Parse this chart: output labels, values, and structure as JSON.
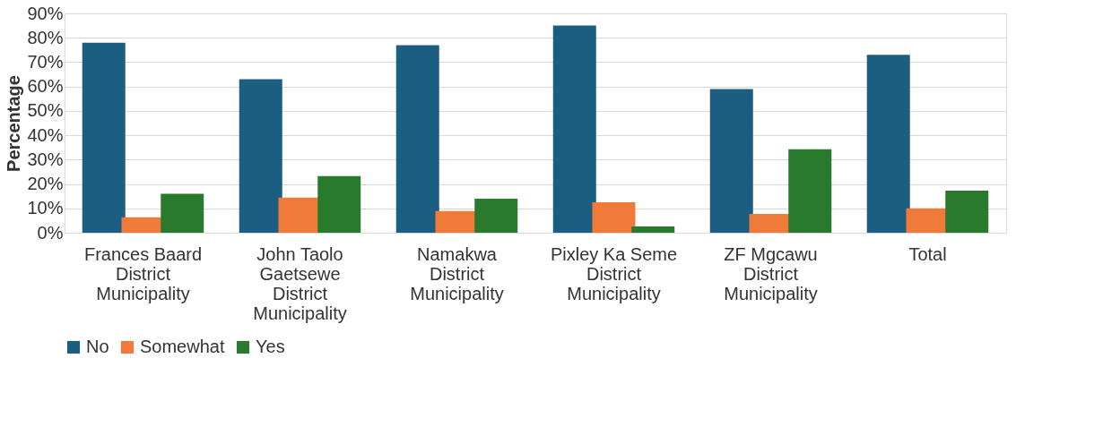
{
  "chart_data": {
    "type": "bar",
    "ylabel": "Percentage",
    "categories": [
      "Frances Baard District Municipality",
      "John Taolo Gaetsewe District Municipality",
      "Namakwa District Municipality",
      "Pixley Ka Seme District Municipality",
      "ZF Mgcawu District Municipality",
      "Total"
    ],
    "series": [
      {
        "name": "No",
        "color": "#1b5e82",
        "values": [
          78,
          63,
          77,
          85,
          59,
          73
        ]
      },
      {
        "name": "Somewhat",
        "color": "#f07a3a",
        "values": [
          6.3,
          14.4,
          8.9,
          12.5,
          7.7,
          10
        ]
      },
      {
        "name": "Yes",
        "color": "#2a7a2e",
        "values": [
          16,
          23.2,
          14,
          2.6,
          34.3,
          17.3
        ]
      }
    ],
    "ylim": [
      0,
      90
    ],
    "yticks": [
      {
        "value": 0,
        "label": "0%"
      },
      {
        "value": 10,
        "label": "10%"
      },
      {
        "value": 20,
        "label": "20%"
      },
      {
        "value": 30,
        "label": "30%"
      },
      {
        "value": 40,
        "label": "40%"
      },
      {
        "value": 50,
        "label": "50%"
      },
      {
        "value": 60,
        "label": "60%"
      },
      {
        "value": 70,
        "label": "70%"
      },
      {
        "value": 80,
        "label": "80%"
      },
      {
        "value": 90,
        "label": "90%"
      }
    ],
    "grid": "y",
    "legend": "bottom"
  }
}
